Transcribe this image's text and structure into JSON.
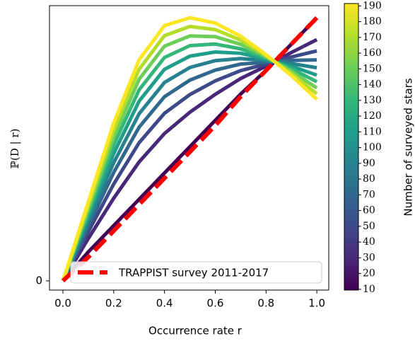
{
  "chart_data": {
    "type": "line",
    "xlabel": "Occurrence rate r",
    "ylabel": "ℙ(D | r)",
    "x": [
      0,
      0.1,
      0.2,
      0.3,
      0.4,
      0.5,
      0.6,
      0.7,
      0.8,
      0.9,
      1.0
    ],
    "xlim": [
      -0.053,
      1.047
    ],
    "ylim": [
      -0.035,
      1.046
    ],
    "xticks": [
      {
        "value": 0,
        "label": "0.0"
      },
      {
        "value": 0.2,
        "label": "0.2"
      },
      {
        "value": 0.4,
        "label": "0.4"
      },
      {
        "value": 0.6,
        "label": "0.6"
      },
      {
        "value": 0.8,
        "label": "0.8"
      },
      {
        "value": 1.0,
        "label": "1.0"
      }
    ],
    "yticks": [
      0
    ],
    "series": [
      {
        "color": "#440154",
        "values": [
          0,
          0.11,
          0.21,
          0.31,
          0.41,
          0.51,
          0.61,
          0.71,
          0.8,
          0.9,
          1.0
        ]
      },
      {
        "color": "#482878",
        "values": [
          0,
          0.161,
          0.314,
          0.452,
          0.56,
          0.641,
          0.709,
          0.769,
          0.816,
          0.868,
          0.917
        ]
      },
      {
        "color": "#3e4989",
        "values": [
          0,
          0.187,
          0.368,
          0.525,
          0.637,
          0.708,
          0.76,
          0.799,
          0.824,
          0.851,
          0.874
        ]
      },
      {
        "color": "#31688e",
        "values": [
          0,
          0.208,
          0.412,
          0.584,
          0.7,
          0.763,
          0.801,
          0.824,
          0.831,
          0.838,
          0.84
        ]
      },
      {
        "color": "#26828e",
        "values": [
          0,
          0.227,
          0.449,
          0.635,
          0.754,
          0.811,
          0.837,
          0.845,
          0.837,
          0.826,
          0.81
        ]
      },
      {
        "color": "#1f9e89",
        "values": [
          0,
          0.244,
          0.484,
          0.683,
          0.804,
          0.854,
          0.87,
          0.865,
          0.842,
          0.816,
          0.782
        ]
      },
      {
        "color": "#35b779",
        "values": [
          0,
          0.259,
          0.516,
          0.726,
          0.849,
          0.894,
          0.9,
          0.882,
          0.847,
          0.806,
          0.757
        ]
      },
      {
        "color": "#6ece58",
        "values": [
          0,
          0.273,
          0.545,
          0.766,
          0.892,
          0.931,
          0.928,
          0.899,
          0.852,
          0.797,
          0.733
        ]
      },
      {
        "color": "#b5de2b",
        "values": [
          0,
          0.287,
          0.573,
          0.804,
          0.932,
          0.967,
          0.955,
          0.915,
          0.856,
          0.788,
          0.711
        ]
      },
      {
        "color": "#fde725",
        "values": [
          0,
          0.3,
          0.6,
          0.84,
          0.97,
          1.0,
          0.98,
          0.93,
          0.86,
          0.78,
          0.69
        ]
      }
    ],
    "reference": {
      "name": "TRAPPIST survey 2011-2017",
      "color": "#ff0000",
      "dashed": true,
      "values": [
        0,
        0.09,
        0.19,
        0.29,
        0.39,
        0.49,
        0.59,
        0.7,
        0.8,
        0.9,
        1.0
      ]
    },
    "legend": "lower right",
    "colorbar": {
      "label": "Number of surveyed stars",
      "lim": [
        9.5,
        191.5
      ],
      "ticks": [
        10,
        20,
        30,
        40,
        50,
        60,
        70,
        80,
        90,
        100,
        110,
        120,
        130,
        140,
        150,
        160,
        170,
        180,
        190
      ],
      "colors": [
        "#440154",
        "#482878",
        "#3e4989",
        "#31688e",
        "#26828e",
        "#1f9e89",
        "#35b779",
        "#6ece58",
        "#b5de2b",
        "#fde725"
      ]
    }
  }
}
